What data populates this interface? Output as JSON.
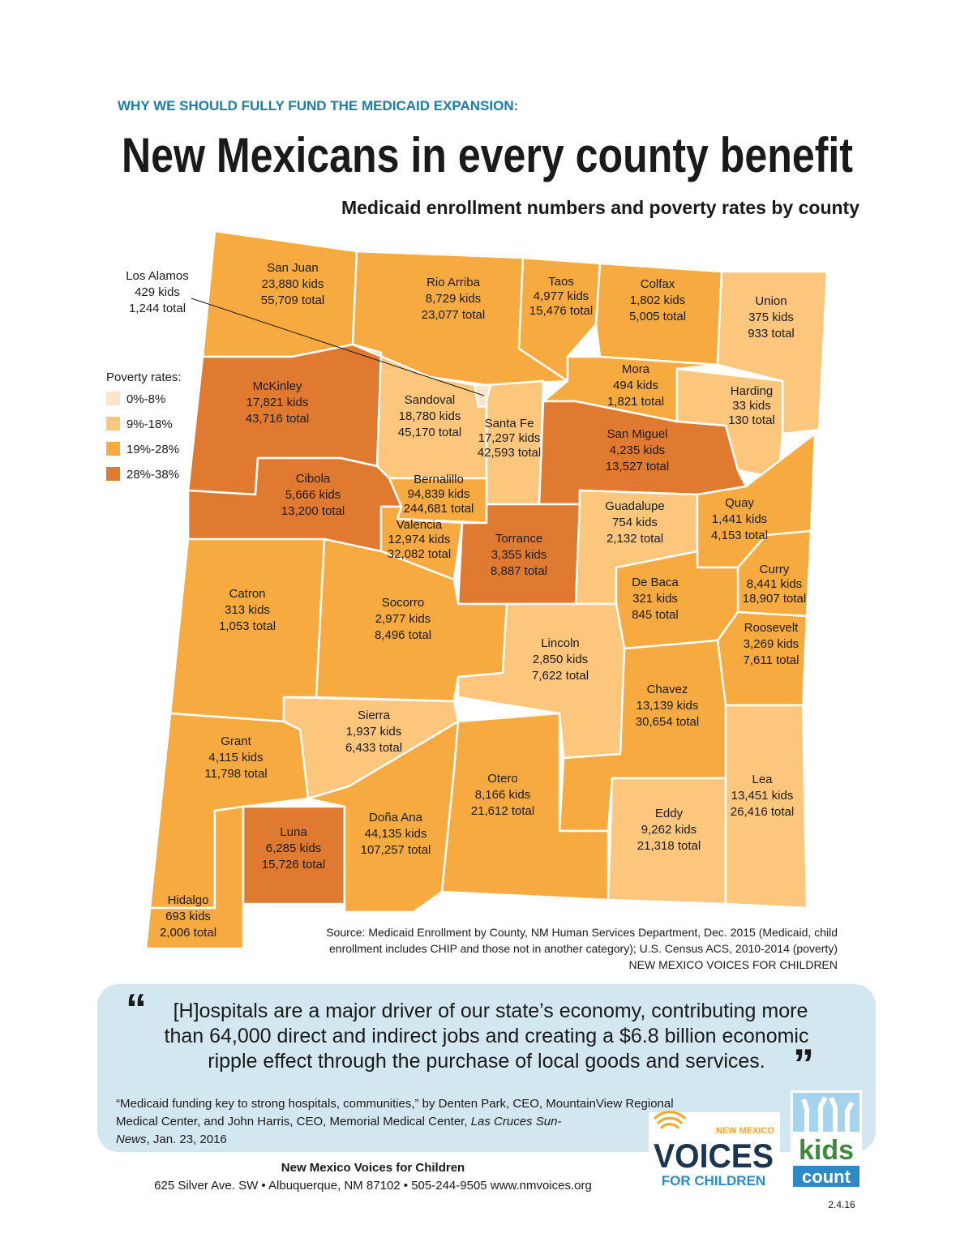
{
  "header": {
    "kicker": "WHY WE SHOULD FULLY FUND THE MEDICAID EXPANSION:",
    "title": "New Mexicans in every county benefit",
    "subtitle": "Medicaid enrollment numbers and poverty rates by county"
  },
  "legend": {
    "title": "Poverty rates:",
    "items": [
      {
        "label": "0%-8%",
        "color": "#fde5c8"
      },
      {
        "label": "9%-18%",
        "color": "#fcc67c"
      },
      {
        "label": "19%-28%",
        "color": "#f6aa40"
      },
      {
        "label": "28%-38%",
        "color": "#e07a30"
      }
    ]
  },
  "counties": [
    {
      "name": "San Juan",
      "kids": "23,880 kids",
      "total": "55,709 total",
      "color": "#f6aa40"
    },
    {
      "name": "Rio Arriba",
      "kids": "8,729 kids",
      "total": "23,077 total",
      "color": "#f6aa40"
    },
    {
      "name": "Taos",
      "kids": "4,977 kids",
      "total": "15,476 total",
      "color": "#f6aa40"
    },
    {
      "name": "Colfax",
      "kids": "1,802 kids",
      "total": "5,005 total",
      "color": "#f6aa40"
    },
    {
      "name": "Union",
      "kids": "375 kids",
      "total": "933 total",
      "color": "#fcc67c"
    },
    {
      "name": "Mora",
      "kids": "494 kids",
      "total": "1,821 total",
      "color": "#f6aa40"
    },
    {
      "name": "Harding",
      "kids": "33 kids",
      "total": "130 total",
      "color": "#fcc67c"
    },
    {
      "name": "McKinley",
      "kids": "17,821 kids",
      "total": "43,716 total",
      "color": "#e07a30"
    },
    {
      "name": "Sandoval",
      "kids": "18,780 kids",
      "total": "45,170 total",
      "color": "#fcc67c"
    },
    {
      "name": "Los Alamos",
      "kids": "429 kids",
      "total": "1,244 total",
      "color": "#fde5c8"
    },
    {
      "name": "Santa Fe",
      "kids": "17,297 kids",
      "total": "42,593 total",
      "color": "#fcc67c"
    },
    {
      "name": "San Miguel",
      "kids": "4,235 kids",
      "total": "13,527 total",
      "color": "#e07a30"
    },
    {
      "name": "Cibola",
      "kids": "5,666 kids",
      "total": "13,200 total",
      "color": "#e07a30"
    },
    {
      "name": "Bernalillo",
      "kids": "94,839 kids",
      "total": "244,681 total",
      "color": "#f6aa40"
    },
    {
      "name": "Valencia",
      "kids": "12,974 kids",
      "total": "32,082 total",
      "color": "#f6aa40"
    },
    {
      "name": "Torrance",
      "kids": "3,355 kids",
      "total": "8,887 total",
      "color": "#e07a30"
    },
    {
      "name": "Guadalupe",
      "kids": "754 kids",
      "total": "2,132 total",
      "color": "#fcc67c"
    },
    {
      "name": "Quay",
      "kids": "1,441 kids",
      "total": "4,153 total",
      "color": "#f6aa40"
    },
    {
      "name": "Curry",
      "kids": "8,441 kids",
      "total": "18,907 total",
      "color": "#f6aa40"
    },
    {
      "name": "De Baca",
      "kids": "321 kids",
      "total": "845 total",
      "color": "#f6aa40"
    },
    {
      "name": "Roosevelt",
      "kids": "3,269 kids",
      "total": "7,611 total",
      "color": "#f6aa40"
    },
    {
      "name": "Catron",
      "kids": "313 kids",
      "total": "1,053 total",
      "color": "#f6aa40"
    },
    {
      "name": "Socorro",
      "kids": "2,977 kids",
      "total": "8,496 total",
      "color": "#f6aa40"
    },
    {
      "name": "Lincoln",
      "kids": "2,850 kids",
      "total": "7,622 total",
      "color": "#fcc67c"
    },
    {
      "name": "Chavez",
      "kids": "13,139 kids",
      "total": "30,654 total",
      "color": "#f6aa40"
    },
    {
      "name": "Sierra",
      "kids": "1,937 kids",
      "total": "6,433 total",
      "color": "#fcc67c"
    },
    {
      "name": "Grant",
      "kids": "4,115 kids",
      "total": "11,798 total",
      "color": "#f6aa40"
    },
    {
      "name": "Hidalgo",
      "kids": "693 kids",
      "total": "2,006 total",
      "color": "#f6aa40"
    },
    {
      "name": "Luna",
      "kids": "6,285 kids",
      "total": "15,726 total",
      "color": "#e07a30"
    },
    {
      "name": "Doña Ana",
      "kids": "44,135 kids",
      "total": "107,257 total",
      "color": "#f6aa40"
    },
    {
      "name": "Otero",
      "kids": "8,166 kids",
      "total": "21,612 total",
      "color": "#f6aa40"
    },
    {
      "name": "Eddy",
      "kids": "9,262 kids",
      "total": "21,318 total",
      "color": "#fcc67c"
    },
    {
      "name": "Lea",
      "kids": "13,451 kids",
      "total": "26,416 total",
      "color": "#fcc67c"
    }
  ],
  "source": {
    "lines": [
      "Source: Medicaid Enrollment by County, NM Human Services Department, Dec. 2015 (Medicaid, child",
      "enrollment includes CHIP and those not in another category); U.S. Census ACS, 2010-2014 (poverty)",
      "NEW MEXICO VOICES FOR CHILDREN"
    ]
  },
  "quote": {
    "open": "“",
    "close": "”",
    "lines": [
      "[H]ospitals are a major driver of our state’s economy, contributing more",
      "than 64,000 direct and indirect jobs and creating a $6.8 billion economic",
      "ripple effect through the purchase of local goods and services."
    ],
    "citation": [
      [
        {
          "text": "“Medicaid funding key to strong hospitals, communities,” by Denten Park, CEO, MountainView Regional"
        }
      ],
      [
        {
          "text": "Medical Center, and John Harris, CEO, Memorial Medical Center, "
        },
        {
          "text": "Las Cruces Sun-",
          "italic": true
        }
      ],
      [
        {
          "text": "News",
          "italic": true
        },
        {
          "text": ", Jan. 23, 2016"
        }
      ]
    ]
  },
  "footer": {
    "org": "New Mexico Voices for Children",
    "address": "625 Silver Ave. SW • Albuquerque, NM 87102 • 505-244-9505 www.nmvoices.org",
    "date": "2.4.16"
  },
  "logos": {
    "voices_top": "NEW MEXICO",
    "voices": "VOICES",
    "voices_bottom": "FOR CHILDREN",
    "kids": "kids",
    "count": "count"
  }
}
